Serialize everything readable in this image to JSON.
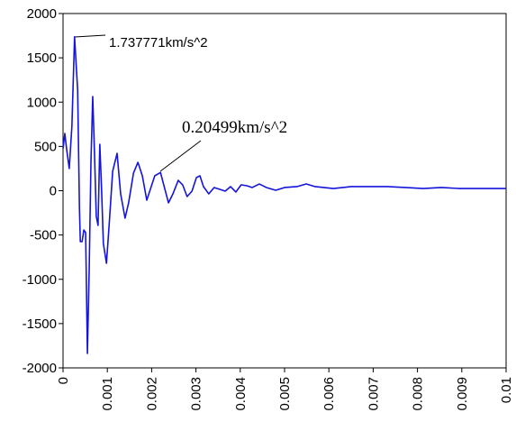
{
  "chart_data": {
    "type": "line",
    "annotations": [
      "1.737771km/s^2",
      "0.20499km/s^2"
    ],
    "x": [
      0,
      4e-05,
      8e-05,
      0.00014,
      0.0002,
      0.00026,
      0.00033,
      0.00037,
      0.00039,
      0.00043,
      0.00047,
      0.00051,
      0.00055,
      0.00059,
      0.00063,
      0.00067,
      0.00071,
      0.00075,
      0.00079,
      0.00083,
      0.00087,
      0.00091,
      0.00098,
      0.00104,
      0.00112,
      0.00122,
      0.0013,
      0.0014,
      0.00148,
      0.00159,
      0.00169,
      0.00179,
      0.00189,
      0.00197,
      0.00207,
      0.0022,
      0.0023,
      0.00238,
      0.00248,
      0.0026,
      0.0027,
      0.0028,
      0.00291,
      0.00301,
      0.00309,
      0.00317,
      0.00329,
      0.00341,
      0.00354,
      0.00366,
      0.00378,
      0.0039,
      0.00402,
      0.00415,
      0.00427,
      0.00443,
      0.00459,
      0.0048,
      0.005,
      0.00528,
      0.00549,
      0.00569,
      0.0061,
      0.0065,
      0.00691,
      0.00732,
      0.00772,
      0.00813,
      0.00854,
      0.00894,
      0.00935,
      0.00976,
      0.01
    ],
    "series": [
      {
        "color": "#1414dc",
        "values": [
          473,
          646,
          473,
          250,
          728,
          1738,
          1135,
          -188,
          -575,
          -575,
          -443,
          -473,
          -1837,
          -900,
          320,
          1063,
          422,
          -290,
          -392,
          524,
          15,
          -595,
          -819,
          -392,
          219,
          422,
          -36,
          -310,
          -137,
          199,
          320,
          168,
          -107,
          15,
          168,
          205,
          15,
          -137,
          -36,
          117,
          66,
          -66,
          -5,
          148,
          168,
          46,
          -36,
          36,
          15,
          -5,
          46,
          -15,
          66,
          56,
          36,
          76,
          36,
          5,
          36,
          46,
          76,
          46,
          25,
          46,
          46,
          46,
          36,
          25,
          36,
          25,
          25,
          25,
          25
        ]
      }
    ],
    "xlim": [
      0,
      0.01
    ],
    "xticks": [
      0,
      0.001,
      0.002,
      0.003,
      0.004,
      0.005,
      0.006,
      0.007,
      0.008,
      0.009,
      0.01
    ],
    "ylim": [
      -2000,
      2000
    ],
    "yticks": [
      -2000,
      -1500,
      -1000,
      -500,
      0,
      500,
      1000,
      1500,
      2000
    ]
  }
}
